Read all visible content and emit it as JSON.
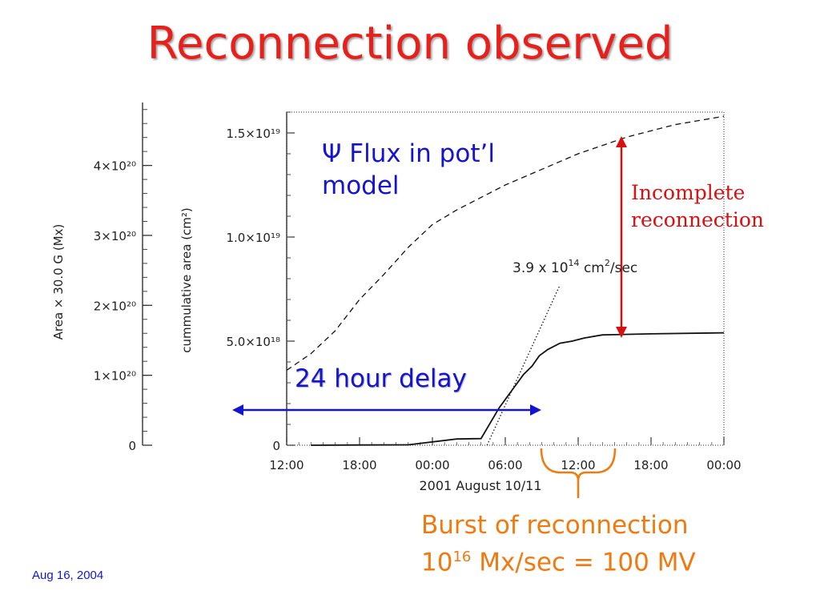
{
  "slide": {
    "title": "Reconnection observed",
    "date_footer": "Aug 16, 2004"
  },
  "annotations": {
    "psi_symbol": "Ψ",
    "psi_line1": "Flux in pot’l",
    "psi_line2": "model",
    "incomplete_line1": "Incomplete",
    "incomplete_line2": "reconnection",
    "delay": "24 hour delay",
    "burst_line1": "Burst of reconnection",
    "burst_base": "10",
    "burst_exp": "16",
    "burst_rest": " Mx/sec = 100 MV",
    "rate_label": "3.9 x 10",
    "rate_exp": "14",
    "rate_unit": " cm",
    "rate_unit_exp": "2",
    "rate_unit_tail": "/sec"
  },
  "colors": {
    "title": "#e8201c",
    "blue": "#1414d0",
    "red": "#d81010",
    "orange": "#f07a10"
  },
  "chart_data": {
    "type": "line",
    "xlabel": "2001 August 10/11",
    "x_ticks": [
      "12:00",
      "18:00",
      "00:00",
      "06:00",
      "12:00",
      "18:00",
      "00:00"
    ],
    "x_hours_range": [
      0,
      36
    ],
    "ylabel_left": "Area × 30.0 G (Mx)",
    "ylabel_right": "cummulative area (cm²)",
    "y_left_ticks": [
      {
        "value": 0,
        "label": "0"
      },
      {
        "value": 1e+20,
        "label": "1×10²⁰"
      },
      {
        "value": 2e+20,
        "label": "2×10²⁰"
      },
      {
        "value": 3e+20,
        "label": "3×10²⁰"
      },
      {
        "value": 4e+20,
        "label": "4×10²⁰"
      }
    ],
    "y_right_ticks": [
      {
        "value": 0,
        "label": "0"
      },
      {
        "value": 5e+18,
        "label": "5.0×10¹⁸"
      },
      {
        "value": 1e+19,
        "label": "1.0×10¹⁹"
      },
      {
        "value": 1.5e+19,
        "label": "1.5×10¹⁹"
      }
    ],
    "ylim_right": [
      0,
      1.6e+19
    ],
    "series": [
      {
        "name": "Flux in pot’l model",
        "style": "dashed",
        "x": [
          0,
          2,
          4,
          6,
          8,
          10,
          12,
          14,
          16,
          18,
          20,
          22,
          24,
          26,
          28,
          30,
          32,
          34,
          36
        ],
        "y": [
          3.6e+18,
          4.4e+18,
          5.5e+18,
          7e+18,
          8.2e+18,
          9.5e+18,
          1.06e+19,
          1.13e+19,
          1.19e+19,
          1.25e+19,
          1.3e+19,
          1.35e+19,
          1.4e+19,
          1.44e+19,
          1.48e+19,
          1.51e+19,
          1.54e+19,
          1.56e+19,
          1.58e+19
        ]
      },
      {
        "name": "",
        "style": "solid",
        "x": [
          2,
          6,
          10,
          14,
          16,
          17.5,
          18.5,
          19.5,
          20.2,
          20.8,
          21.5,
          22.5,
          23.5,
          24.5,
          26,
          30,
          36
        ],
        "y": [
          0,
          1e+16,
          2e+16,
          3e+17,
          3.2e+17,
          1.8e+18,
          2.6e+18,
          3.4e+18,
          3.8e+18,
          4.3e+18,
          4.6e+18,
          4.9e+18,
          5e+18,
          5.15e+18,
          5.3e+18,
          5.35e+18,
          5.4e+18
        ]
      }
    ],
    "fit_line": {
      "style": "dotted",
      "x": [
        16.5,
        22.5
      ],
      "y": [
        0,
        7.7e+18
      ]
    }
  }
}
